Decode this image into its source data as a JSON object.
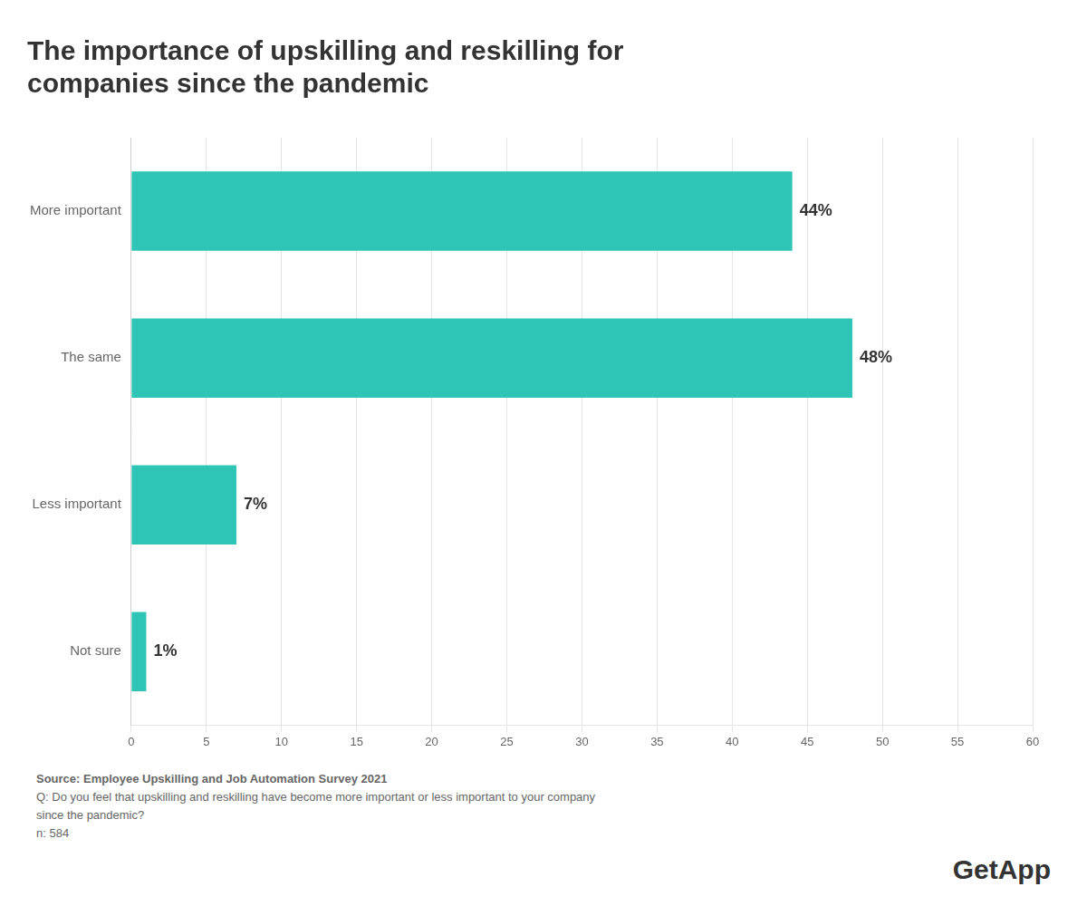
{
  "chart_data": {
    "type": "bar",
    "orientation": "horizontal",
    "title": [
      "The importance of upskilling and reskilling for",
      "companies since the pandemic"
    ],
    "categories": [
      "More important",
      "The same",
      "Less important",
      "Not sure"
    ],
    "values": [
      44,
      48,
      7,
      1
    ],
    "value_labels": [
      "44%",
      "48%",
      "7%",
      "1%"
    ],
    "data_labels": true,
    "color": "#2EC4B6",
    "xlim": [
      0,
      60
    ],
    "xticks": [
      0,
      5,
      10,
      15,
      20,
      25,
      30,
      35,
      40,
      45,
      50,
      55,
      60
    ],
    "grid": true,
    "annotations": [
      "Source: Employee Upskilling and Job Automation Survey 2021",
      "Q: Do you feel that upskilling and reskilling have become more important or less important to your company",
      "since the pandemic?",
      "n: 584",
      "GetApp"
    ]
  }
}
